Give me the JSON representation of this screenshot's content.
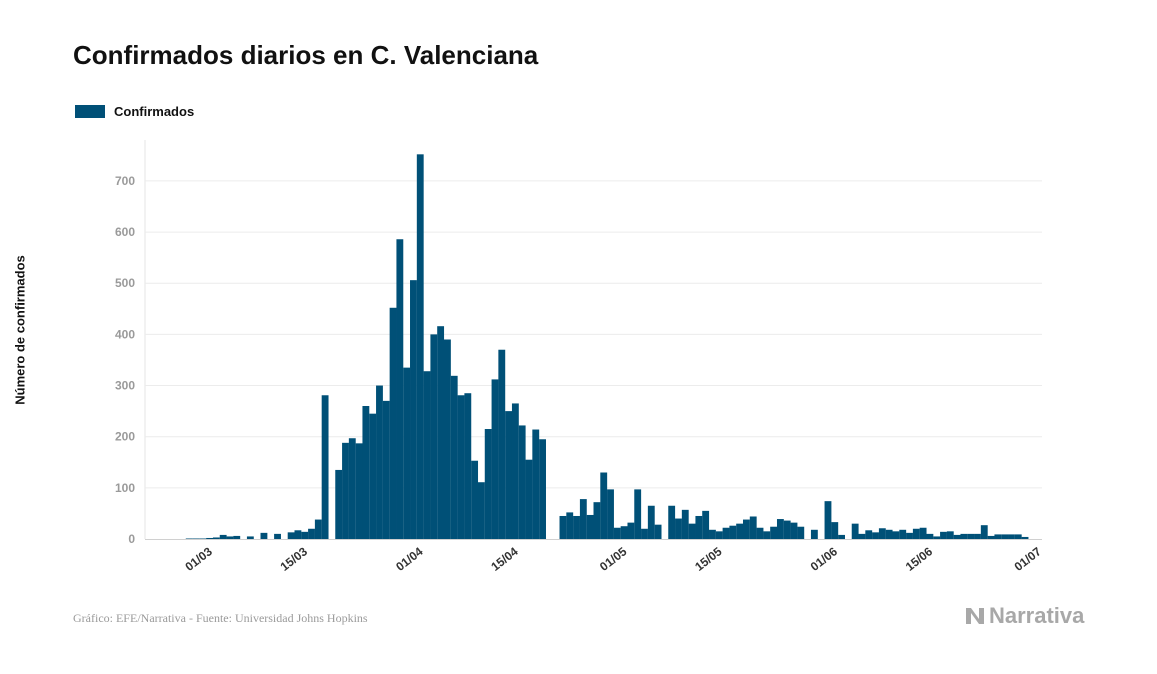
{
  "title": "Confirmados diarios en C. Valenciana",
  "legend": {
    "label": "Confirmados",
    "color": "#005077"
  },
  "footer": "Gráfico: EFE/Narrativa - Fuente: Universidad Johns Hopkins",
  "brand": {
    "name": "Narrativa",
    "icon": "narrativa-logo-icon"
  },
  "chart_data": {
    "type": "bar",
    "ylabel": "Número de confirmados",
    "xlabel": "",
    "ylim": [
      0,
      780
    ],
    "yticks": [
      0,
      100,
      200,
      300,
      400,
      500,
      600,
      700
    ],
    "grid": true,
    "legend_position": "top-left",
    "bar_color": "#005077",
    "x_start": "2020-02-20",
    "x_end": "2020-07-01",
    "xtick_labels": [
      {
        "date": "2020-03-01",
        "label": "01/03"
      },
      {
        "date": "2020-03-15",
        "label": "15/03"
      },
      {
        "date": "2020-04-01",
        "label": "01/04"
      },
      {
        "date": "2020-04-15",
        "label": "15/04"
      },
      {
        "date": "2020-05-01",
        "label": "01/05"
      },
      {
        "date": "2020-05-15",
        "label": "15/05"
      },
      {
        "date": "2020-06-01",
        "label": "01/06"
      },
      {
        "date": "2020-06-15",
        "label": "15/06"
      },
      {
        "date": "2020-07-01",
        "label": "01/07"
      }
    ],
    "series": [
      {
        "name": "Confirmados",
        "start_date": "2020-02-26",
        "values": [
          1,
          1,
          1,
          2,
          3,
          8,
          5,
          6,
          0,
          5,
          0,
          12,
          0,
          10,
          0,
          13,
          17,
          14,
          20,
          38,
          281,
          0,
          135,
          188,
          197,
          187,
          260,
          245,
          300,
          270,
          452,
          586,
          335,
          506,
          752,
          328,
          400,
          416,
          390,
          319,
          281,
          285,
          153,
          111,
          215,
          312,
          370,
          250,
          265,
          222,
          155,
          214,
          195,
          0,
          0,
          45,
          52,
          45,
          78,
          47,
          72,
          130,
          97,
          22,
          25,
          32,
          97,
          20,
          65,
          28,
          0,
          65,
          40,
          57,
          30,
          45,
          55,
          18,
          15,
          22,
          26,
          30,
          38,
          44,
          22,
          15,
          24,
          39,
          36,
          32,
          24,
          0,
          18,
          0,
          74,
          33,
          8,
          0,
          30,
          10,
          17,
          13,
          21,
          18,
          15,
          18,
          12,
          20,
          22,
          10,
          5,
          14,
          15,
          8,
          10,
          10,
          10,
          27,
          6,
          9,
          9,
          9,
          9,
          4,
          0,
          0,
          0
        ]
      }
    ]
  }
}
